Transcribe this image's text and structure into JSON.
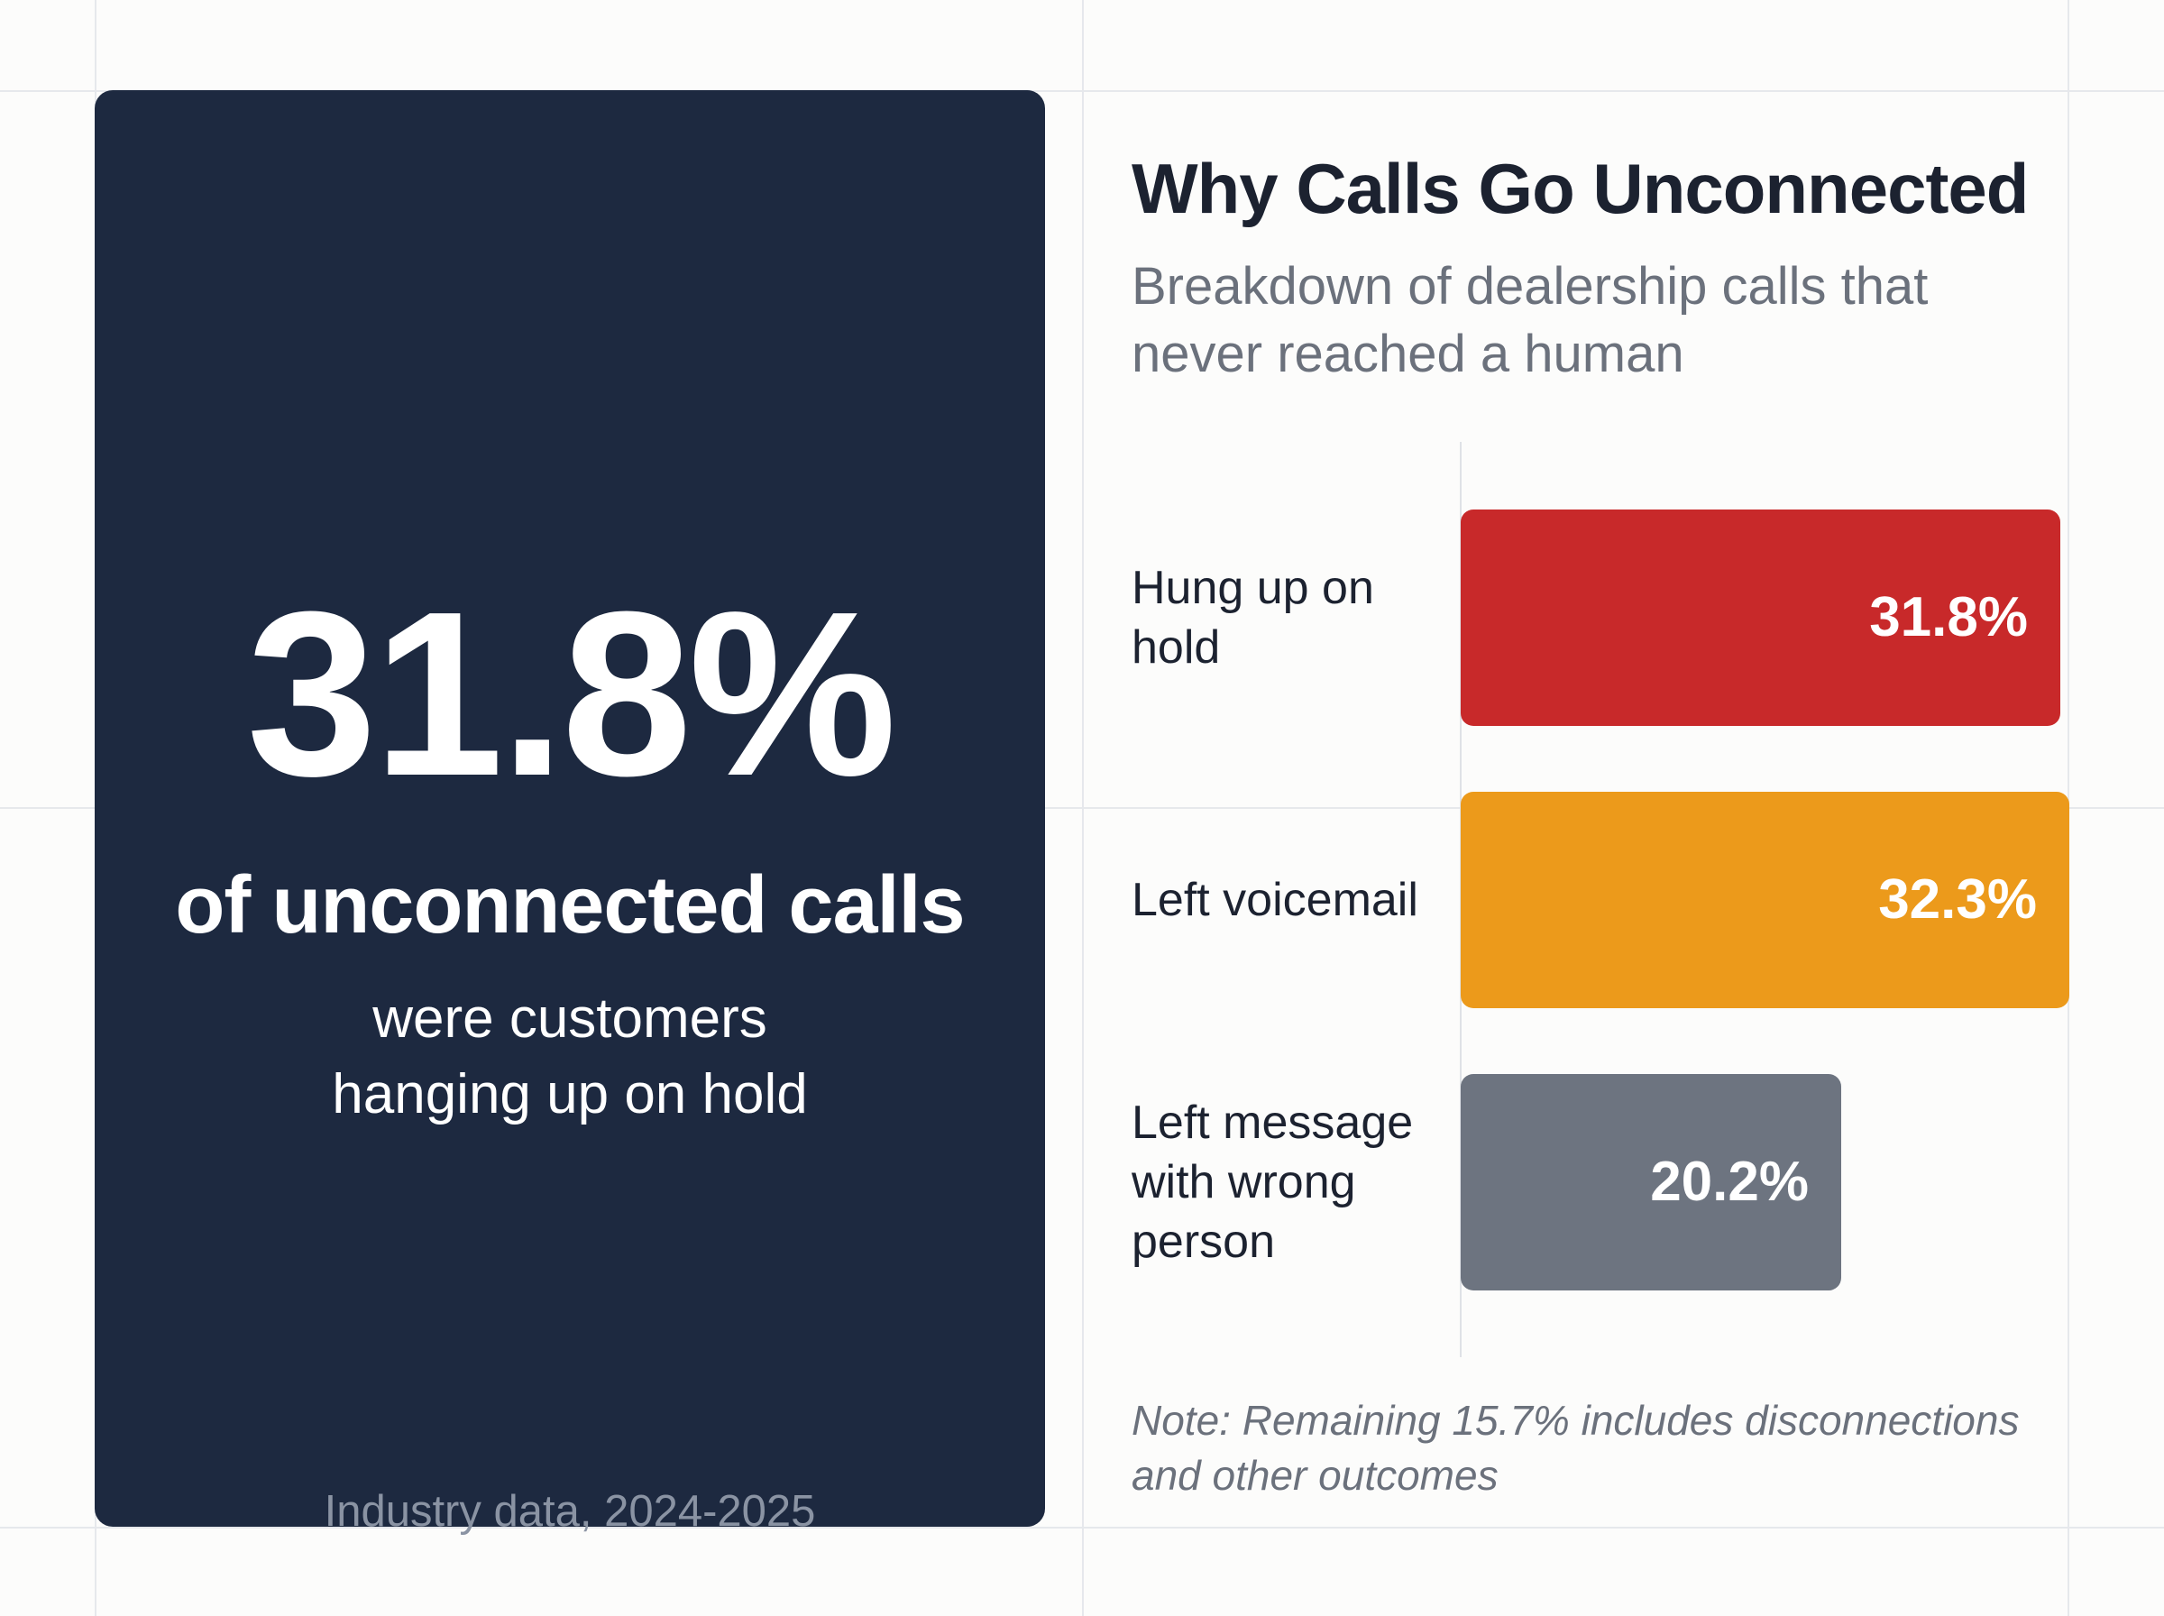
{
  "stat_card": {
    "value": "31.8%",
    "line1": "of unconnected calls",
    "line2": [
      "were customers",
      "hanging up on hold"
    ],
    "source": "Industry data, 2024-2025",
    "background": "#1d2940"
  },
  "chart_data": {
    "type": "bar",
    "orientation": "horizontal",
    "title": "Why Calls Go Unconnected",
    "subtitle": [
      "Breakdown of dealership calls that",
      "never reached a human"
    ],
    "categories": [
      [
        "Hung up on",
        "hold"
      ],
      [
        "Left voicemail"
      ],
      [
        "Left message",
        "with wrong",
        "person"
      ]
    ],
    "values": [
      31.8,
      32.3,
      20.2
    ],
    "value_labels": [
      "31.8%",
      "32.3%",
      "20.2%"
    ],
    "colors": [
      "#c8292a",
      "#ec9a1b",
      "#6d7480"
    ],
    "xlim": [
      0,
      32.3
    ],
    "grid": false,
    "legend": false,
    "note": [
      "Note: Remaining 15.7% includes disconnections",
      "and other outcomes"
    ]
  }
}
